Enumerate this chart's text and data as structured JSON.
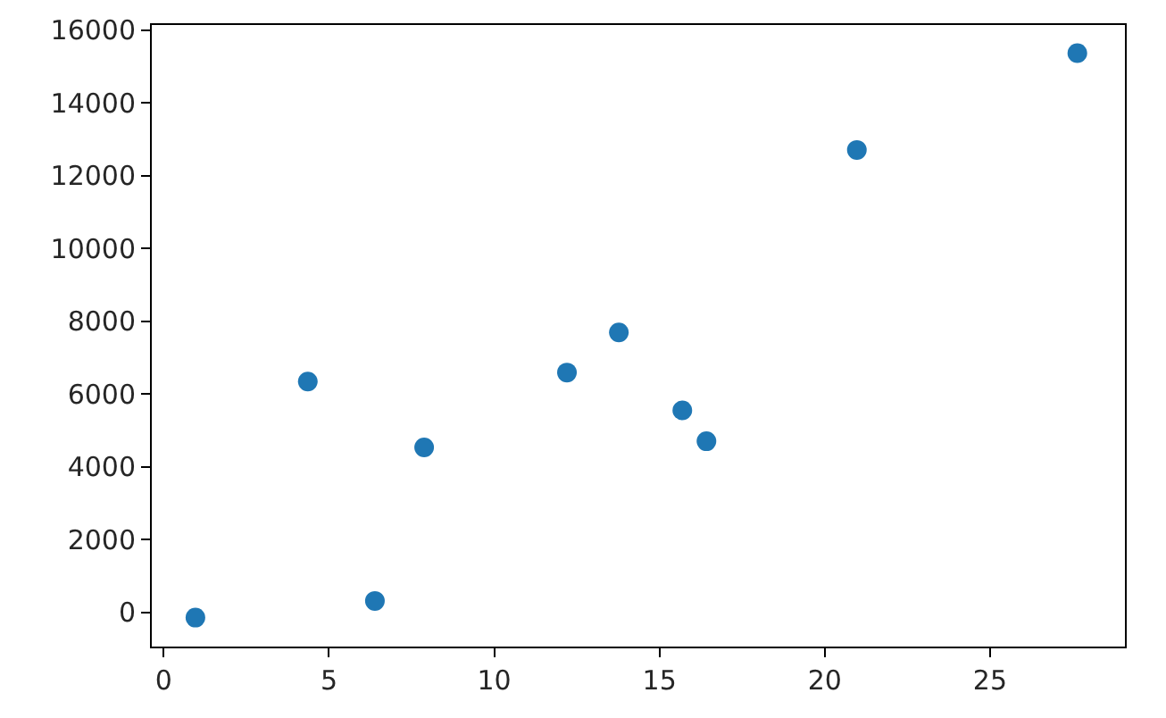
{
  "chart_data": {
    "type": "scatter",
    "color": "#1f77b4",
    "marker": "circle",
    "x": [
      0.96,
      4.36,
      6.39,
      7.88,
      12.2,
      13.77,
      15.69,
      16.42,
      20.97,
      27.64
    ],
    "values": [
      -150,
      6340,
      310,
      4530,
      6590,
      7690,
      5550,
      4700,
      12710,
      15370
    ],
    "xlim": [
      -0.36,
      29.08
    ],
    "ylim": [
      -945,
      16145
    ],
    "xticks": [
      0,
      5,
      10,
      15,
      20,
      25
    ],
    "yticks": [
      0,
      2000,
      4000,
      6000,
      8000,
      10000,
      12000,
      14000,
      16000
    ]
  }
}
